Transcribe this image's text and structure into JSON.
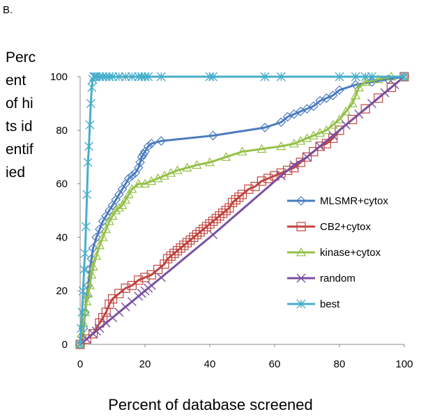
{
  "panel_label": "B.",
  "chart_data": {
    "type": "line",
    "title": "",
    "xlabel": "Percent of database screened",
    "ylabel": "Percent of hits identified",
    "xlim": [
      0,
      100
    ],
    "ylim": [
      0,
      100
    ],
    "xticks": [
      0,
      20,
      40,
      60,
      80,
      100
    ],
    "yticks": [
      0,
      20,
      40,
      60,
      80,
      100
    ],
    "grid": false,
    "legend_position": "right-middle",
    "series": [
      {
        "name": "MLSMR+cytox",
        "color": "#4a7bbf",
        "marker": "diamond",
        "x": [
          0,
          0.5,
          1,
          1.5,
          2,
          2.5,
          3,
          3.5,
          4,
          5,
          6,
          7,
          8,
          9,
          10,
          11,
          12,
          13,
          14,
          15,
          16,
          17,
          18,
          18.5,
          19,
          19.5,
          20,
          21,
          22,
          25,
          41,
          57,
          62,
          64,
          66,
          68,
          70,
          72,
          74,
          76,
          78,
          80,
          85,
          90,
          95,
          100
        ],
        "y": [
          0,
          3,
          6,
          12,
          18,
          22,
          28,
          32,
          36,
          40,
          43,
          46,
          48,
          50,
          52,
          54,
          56,
          58,
          60,
          62,
          63,
          64,
          66,
          68,
          70,
          71,
          72,
          74,
          75,
          76,
          78,
          81,
          83,
          85,
          86,
          87,
          88,
          89,
          91,
          92,
          93,
          95,
          97,
          98,
          99,
          100
        ]
      },
      {
        "name": "CB2+cytox",
        "color": "#c0443f",
        "marker": "square",
        "x": [
          0,
          2,
          4,
          6,
          7,
          8,
          9,
          10,
          12,
          14,
          16,
          18,
          20,
          22,
          24,
          26,
          27,
          28,
          29,
          30,
          31,
          32,
          33,
          34,
          35,
          36,
          37,
          38,
          39,
          40,
          41,
          42,
          43,
          44,
          45,
          46,
          47,
          48,
          49,
          50,
          52,
          54,
          56,
          58,
          60,
          62,
          64,
          66,
          68,
          70,
          72,
          74,
          76,
          78,
          80,
          84,
          88,
          92,
          96,
          100
        ],
        "y": [
          0,
          2,
          4,
          8,
          10,
          12,
          15,
          17,
          19,
          21,
          22,
          24,
          25,
          26,
          28,
          30,
          32,
          33,
          34,
          35,
          36,
          37,
          38,
          39,
          40,
          41,
          42,
          43,
          44,
          45,
          46,
          47,
          48,
          49,
          50,
          51,
          53,
          54,
          55,
          56,
          58,
          59,
          61,
          62,
          63,
          64,
          65,
          66,
          68,
          70,
          72,
          74,
          75,
          77,
          80,
          84,
          88,
          92,
          96,
          100
        ]
      },
      {
        "name": "kinase+cytox",
        "color": "#93c047",
        "marker": "triangle",
        "x": [
          0,
          0.5,
          1,
          1.5,
          2,
          2.5,
          3,
          3.5,
          4,
          5,
          6,
          7,
          8,
          9,
          10,
          11,
          12,
          13,
          14,
          15,
          16,
          18,
          20,
          22,
          24,
          26,
          28,
          30,
          33,
          36,
          40,
          45,
          50,
          56,
          62,
          66,
          68,
          70,
          72,
          74,
          76,
          78,
          80,
          82,
          84,
          85,
          86,
          88,
          92,
          96,
          100
        ],
        "y": [
          0,
          4,
          8,
          12,
          16,
          19,
          22,
          26,
          29,
          33,
          37,
          40,
          43,
          46,
          48,
          50,
          51,
          52,
          54,
          56,
          58,
          60,
          60,
          61,
          62,
          63,
          64,
          65,
          66,
          67,
          68,
          70,
          72,
          73,
          74,
          75,
          76,
          77,
          78,
          79,
          80,
          82,
          84,
          87,
          90,
          93,
          96,
          98,
          99,
          100,
          100
        ]
      },
      {
        "name": "random",
        "color": "#7a4fa0",
        "marker": "x",
        "x": [
          0,
          2,
          4,
          5,
          6,
          8,
          10,
          12,
          14,
          16,
          18,
          19,
          20,
          21,
          22,
          25,
          41,
          62,
          66,
          70,
          74,
          78,
          82,
          86,
          90,
          94,
          97,
          100
        ],
        "y": [
          0,
          2,
          4,
          5,
          6,
          8,
          10,
          12,
          14,
          16,
          18,
          19,
          20,
          21,
          22,
          25,
          41,
          63,
          67,
          70,
          74,
          78,
          82,
          86,
          90,
          94,
          97,
          100
        ]
      },
      {
        "name": "best",
        "color": "#46aecb",
        "marker": "star",
        "x": [
          0,
          0.3,
          0.6,
          0.9,
          1.2,
          1.5,
          1.8,
          2.1,
          2.4,
          2.7,
          3.0,
          3.3,
          3.6,
          3.9,
          4.2,
          4.5,
          5,
          6,
          7,
          8,
          9,
          10,
          12,
          14,
          16,
          18,
          19,
          20,
          21,
          25,
          40,
          41,
          57,
          62,
          80,
          85,
          88,
          90,
          100
        ],
        "y": [
          0,
          6,
          12,
          20,
          28,
          34,
          44,
          56,
          68,
          74,
          82,
          90,
          96,
          99,
          100,
          100,
          100,
          100,
          100,
          100,
          100,
          100,
          100,
          100,
          100,
          100,
          100,
          100,
          100,
          100,
          100,
          100,
          100,
          100,
          100,
          100,
          100,
          100,
          100
        ]
      }
    ]
  }
}
